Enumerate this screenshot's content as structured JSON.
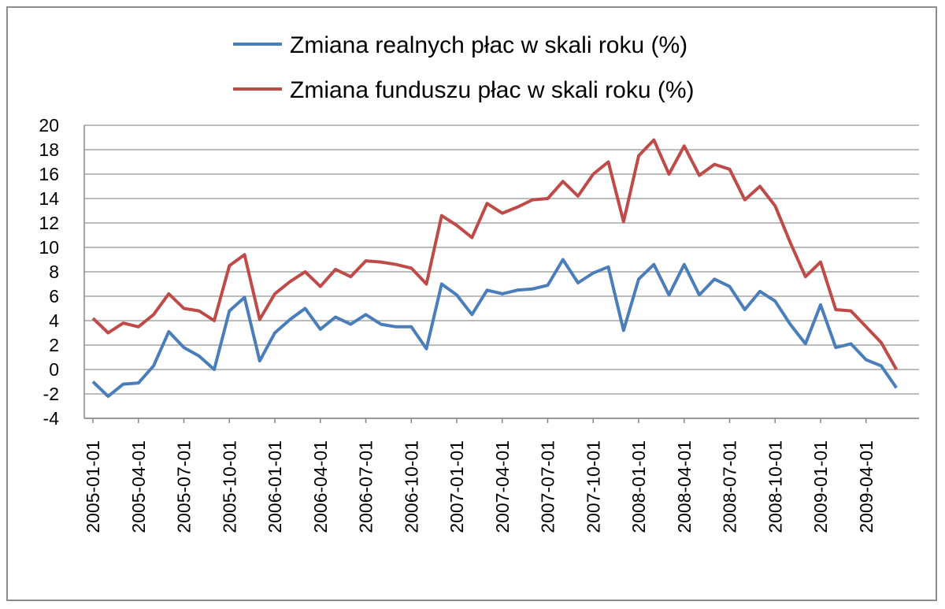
{
  "chart_data": {
    "type": "line",
    "title": "",
    "xlabel": "",
    "ylabel": "",
    "ylim": [
      -4,
      20
    ],
    "y_ticks": [
      20,
      18,
      16,
      14,
      12,
      10,
      8,
      6,
      4,
      2,
      0,
      -2,
      -4
    ],
    "grid": "horizontal",
    "legend_position": "top",
    "x_start": "2005-01",
    "x_tick_labels": [
      "2005-01-01",
      "2005-04-01",
      "2005-07-01",
      "2005-10-01",
      "2006-01-01",
      "2006-04-01",
      "2006-07-01",
      "2006-10-01",
      "2007-01-01",
      "2007-04-01",
      "2007-07-01",
      "2007-10-01",
      "2008-01-01",
      "2008-04-01",
      "2008-07-01",
      "2008-10-01",
      "2009-01-01",
      "2009-04-01"
    ],
    "series": [
      {
        "name": "Zmiana realnych płac w skali roku (%)",
        "color": "#4a7ebb",
        "values": [
          -1.0,
          -2.2,
          -1.2,
          -1.1,
          0.3,
          3.1,
          1.8,
          1.1,
          0.0,
          4.8,
          5.9,
          0.7,
          3.0,
          4.1,
          5.0,
          3.3,
          4.3,
          3.7,
          4.5,
          3.7,
          3.5,
          3.5,
          1.7,
          7.0,
          6.1,
          4.5,
          6.5,
          6.2,
          6.5,
          6.6,
          6.9,
          9.0,
          7.1,
          7.9,
          8.4,
          3.2,
          7.4,
          8.6,
          6.1,
          8.6,
          6.1,
          7.4,
          6.8,
          4.9,
          6.4,
          5.6,
          3.7,
          2.1,
          5.3,
          1.8,
          2.1,
          0.8,
          0.3,
          -1.5
        ]
      },
      {
        "name": "Zmiana funduszu płac w skali roku (%)",
        "color": "#be4b48",
        "values": [
          4.2,
          3.0,
          3.8,
          3.5,
          4.5,
          6.2,
          5.0,
          4.8,
          4.0,
          8.5,
          9.4,
          4.1,
          6.2,
          7.2,
          8.0,
          6.8,
          8.2,
          7.6,
          8.9,
          8.8,
          8.6,
          8.3,
          7.0,
          12.6,
          11.8,
          10.8,
          13.6,
          12.8,
          13.3,
          13.9,
          14.0,
          15.4,
          14.2,
          16.0,
          17.0,
          12.1,
          17.5,
          18.8,
          16.0,
          18.3,
          15.9,
          16.8,
          16.4,
          13.9,
          15.0,
          13.4,
          10.4,
          7.6,
          8.8,
          4.9,
          4.8,
          3.5,
          2.2,
          0.0
        ]
      }
    ]
  }
}
